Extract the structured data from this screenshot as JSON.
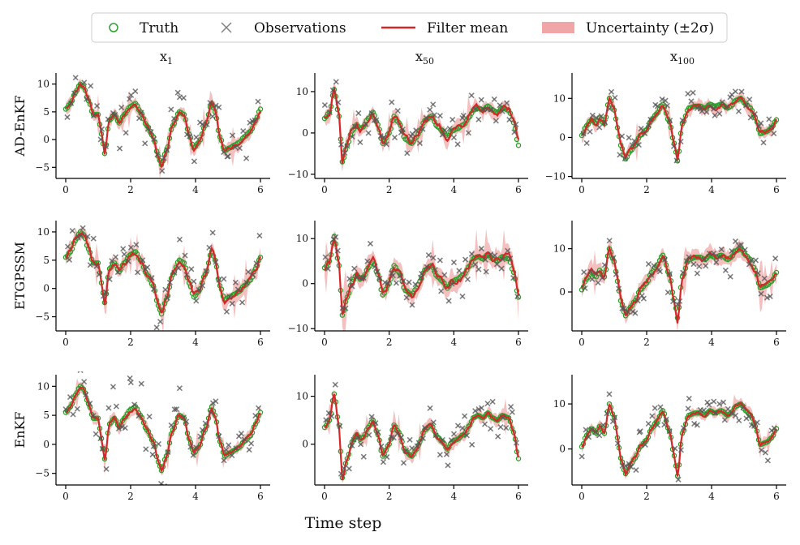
{
  "chart_data": {
    "type": "line",
    "legend": {
      "placement": "top-center",
      "entries": [
        {
          "key": "truth",
          "label": "Truth",
          "marker": "circle-open",
          "color": "#2ca02c"
        },
        {
          "key": "obs",
          "label": "Observations",
          "marker": "x",
          "color": "#7f7f7f"
        },
        {
          "key": "mean",
          "label": "Filter mean",
          "marker": "line",
          "color": "#d62728"
        },
        {
          "key": "unc",
          "label": "Uncertainty (±2σ)",
          "marker": "band",
          "color": "#f0a6a6"
        }
      ]
    },
    "colors": {
      "truth": "#2ca02c",
      "mean": "#d62728",
      "band": "#e98a8a",
      "obs": "#555555",
      "axis": "#000000"
    },
    "xlabel": "Time step",
    "columns": [
      {
        "base": "x",
        "sub": "1"
      },
      {
        "base": "x",
        "sub": "50"
      },
      {
        "base": "x",
        "sub": "100"
      }
    ],
    "rows": [
      "AD-EnKF",
      "ETGPSSM",
      "EnKF"
    ],
    "x_range": [
      0,
      6
    ],
    "x_ticks": [
      "0",
      "2",
      "4",
      "6"
    ],
    "panels": [
      {
        "row": 0,
        "col": 0,
        "ylim": [
          -7,
          12
        ],
        "yticks": [
          -5,
          0,
          5,
          10
        ],
        "variable": 1,
        "seed": 11,
        "band": 1.0,
        "err": 0.6
      },
      {
        "row": 0,
        "col": 1,
        "ylim": [
          -11,
          14.5
        ],
        "yticks": [
          -10,
          0,
          10
        ],
        "variable": 50,
        "seed": 12,
        "band": 1.5,
        "err": 1.3
      },
      {
        "row": 0,
        "col": 2,
        "ylim": [
          -10.5,
          16.5
        ],
        "yticks": [
          -10,
          0,
          10
        ],
        "variable": 100,
        "seed": 13,
        "band": 1.4,
        "err": 0.9
      },
      {
        "row": 1,
        "col": 0,
        "ylim": [
          -7.5,
          12
        ],
        "yticks": [
          -5,
          0,
          5,
          10
        ],
        "variable": 1,
        "seed": 21,
        "band": 1.2,
        "err": 0.9
      },
      {
        "row": 1,
        "col": 1,
        "ylim": [
          -10.5,
          14
        ],
        "yticks": [
          -10,
          0,
          10
        ],
        "variable": 50,
        "seed": 22,
        "band": 1.8,
        "err": 1.5
      },
      {
        "row": 1,
        "col": 2,
        "ylim": [
          -9,
          16.5
        ],
        "yticks": [
          0,
          10
        ],
        "variable": 100,
        "seed": 23,
        "band": 1.6,
        "err": 1.1
      },
      {
        "row": 2,
        "col": 0,
        "ylim": [
          -7,
          12
        ],
        "yticks": [
          -5,
          0,
          5,
          10
        ],
        "variable": 1,
        "seed": 31,
        "band": 0.9,
        "err": 0.4
      },
      {
        "row": 2,
        "col": 1,
        "ylim": [
          -8.5,
          14.5
        ],
        "yticks": [
          0,
          10
        ],
        "variable": 50,
        "seed": 32,
        "band": 1.1,
        "err": 0.5
      },
      {
        "row": 2,
        "col": 2,
        "ylim": [
          -8,
          16.5
        ],
        "yticks": [
          0,
          10
        ],
        "variable": 100,
        "seed": 33,
        "band": 1.0,
        "err": 0.5
      }
    ],
    "truth_series": {
      "x": [
        0,
        0.15,
        0.3,
        0.45,
        0.55,
        0.7,
        0.85,
        1.0,
        1.1,
        1.2,
        1.35,
        1.5,
        1.65,
        1.8,
        2.0,
        2.15,
        2.3,
        2.5,
        2.7,
        2.85,
        2.95,
        3.1,
        3.3,
        3.5,
        3.65,
        3.8,
        3.95,
        4.1,
        4.3,
        4.5,
        4.6,
        4.75,
        4.9,
        5.05,
        5.2,
        5.35,
        5.5,
        5.7,
        5.85,
        6.0
      ],
      "x1": [
        5.5,
        6.5,
        8.5,
        10.0,
        9.5,
        7.0,
        4.5,
        4.5,
        1.0,
        -2.5,
        3.5,
        4.5,
        3.0,
        4.5,
        6.0,
        6.5,
        5.0,
        2.5,
        0.5,
        -3.0,
        -4.5,
        -2.0,
        2.5,
        5.0,
        4.5,
        1.0,
        -1.5,
        -0.5,
        2.5,
        6.5,
        5.0,
        0.5,
        -2.0,
        -1.5,
        -1.0,
        -0.5,
        0.5,
        1.5,
        3.5,
        5.5
      ],
      "x50": [
        3.5,
        5.0,
        10.5,
        4.0,
        -7.0,
        -3.0,
        0.5,
        2.0,
        1.0,
        1.5,
        3.5,
        5.0,
        2.0,
        -2.5,
        0.0,
        4.0,
        2.5,
        -1.5,
        -2.5,
        -1.0,
        0.5,
        3.0,
        4.0,
        1.5,
        0.5,
        -1.0,
        0.5,
        1.0,
        2.0,
        4.0,
        5.5,
        6.0,
        5.5,
        6.5,
        5.5,
        5.0,
        6.0,
        5.5,
        2.5,
        -3.0
      ],
      "x100": [
        0.5,
        3.0,
        4.5,
        3.5,
        5.0,
        3.5,
        10.0,
        7.0,
        2.5,
        -2.0,
        -5.5,
        -3.5,
        -2.0,
        0.5,
        2.0,
        4.5,
        6.0,
        8.5,
        4.0,
        -1.5,
        -6.0,
        3.5,
        7.5,
        8.0,
        8.0,
        7.5,
        8.5,
        8.0,
        8.5,
        7.5,
        8.0,
        9.5,
        10.0,
        8.5,
        7.5,
        5.0,
        1.0,
        1.5,
        2.5,
        4.5
      ]
    }
  }
}
